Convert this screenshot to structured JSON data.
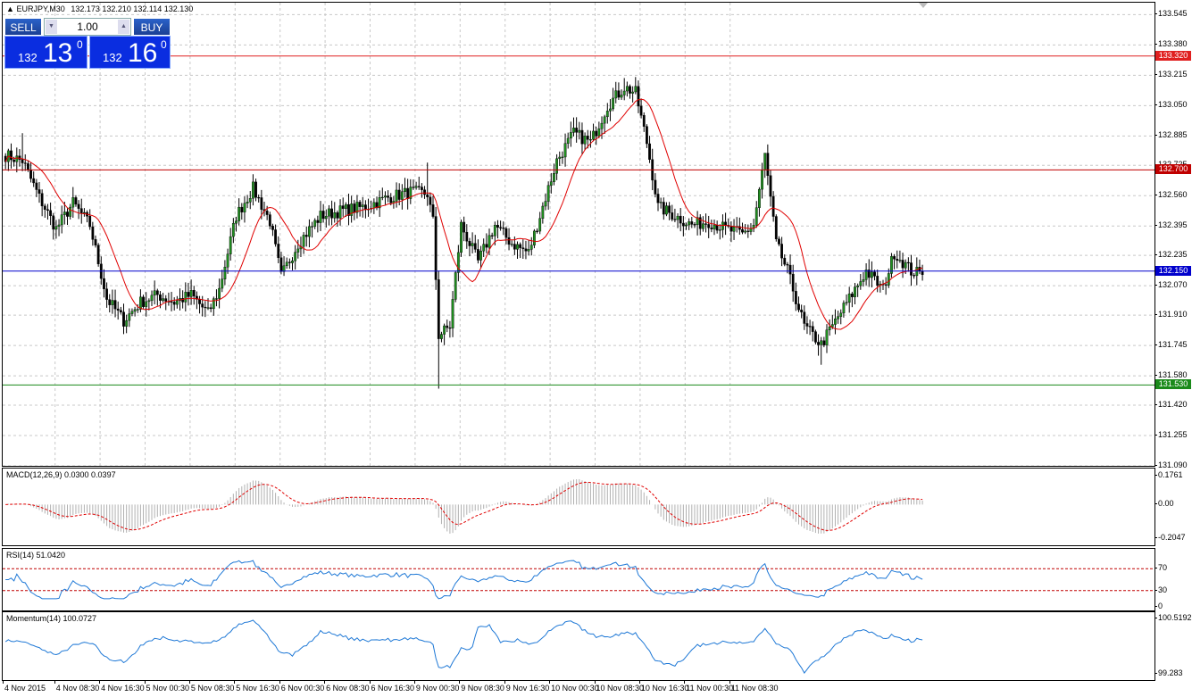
{
  "main": {
    "title": "EURJPY,M30",
    "ohlc": "132.173 132.210 132.114 132.130",
    "y_ticks": [
      "133.545",
      "133.380",
      "133.215",
      "133.050",
      "132.885",
      "132.725",
      "132.560",
      "132.395",
      "132.235",
      "132.070",
      "131.910",
      "131.745",
      "131.580",
      "131.420",
      "131.255",
      "131.090"
    ],
    "hlines": [
      {
        "value": 133.32,
        "label": "133.320",
        "color": "#e02020"
      },
      {
        "value": 132.7,
        "label": "132.700",
        "color": "#c00000"
      },
      {
        "value": 132.15,
        "label": "132.150",
        "color": "#0000cc"
      },
      {
        "value": 131.53,
        "label": "131.530",
        "color": "#1a8a1a"
      }
    ]
  },
  "trade_panel": {
    "sell_label": "SELL",
    "buy_label": "BUY",
    "lot": "1.00",
    "sell_prefix": "132",
    "sell_big": "13",
    "sell_sup": "0",
    "buy_prefix": "132",
    "buy_big": "16",
    "buy_sup": "0",
    "arrow_down": "▼",
    "arrow_up": "▲"
  },
  "macd": {
    "title": "MACD(12,26,9) 0.0300 0.0397",
    "ticks": [
      "0.1761",
      "0.00",
      "-0.2047"
    ]
  },
  "rsi": {
    "title": "RSI(14) 51.0420",
    "ticks": [
      "70",
      "30",
      "0"
    ],
    "levels": [
      70,
      30
    ]
  },
  "momentum": {
    "title": "Momentum(14) 100.0727",
    "ticks": [
      "100.5192",
      "99.283"
    ]
  },
  "x_labels": [
    "4 Nov 2015",
    "4 Nov 08:30",
    "4 Nov 16:30",
    "5 Nov 00:30",
    "5 Nov 08:30",
    "5 Nov 16:30",
    "6 Nov 00:30",
    "6 Nov 08:30",
    "6 Nov 16:30",
    "9 Nov 00:30",
    "9 Nov 08:30",
    "9 Nov 16:30",
    "10 Nov 00:30",
    "10 Nov 08:30",
    "10 Nov 16:30",
    "11 Nov 00:30",
    "11 Nov 08:30"
  ],
  "colors": {
    "bull": "#1f8f1f",
    "bear": "#000000",
    "ma": "#e00000",
    "signal": "#e00000",
    "hist": "#b0b0b0",
    "rsi": "#1e78d6",
    "mom": "#1e78d6",
    "grid": "#c8c8c8"
  },
  "chart_data": {
    "type": "candlestick",
    "symbol": "EURJPY",
    "timeframe": "M30",
    "ylim": [
      131.09,
      133.61
    ],
    "anchors_close": [
      [
        0,
        132.78
      ],
      [
        6,
        132.75
      ],
      [
        12,
        132.55
      ],
      [
        18,
        132.38
      ],
      [
        24,
        132.52
      ],
      [
        30,
        132.4
      ],
      [
        36,
        132.0
      ],
      [
        42,
        131.88
      ],
      [
        48,
        131.98
      ],
      [
        54,
        132.02
      ],
      [
        60,
        131.98
      ],
      [
        66,
        132.02
      ],
      [
        72,
        131.92
      ],
      [
        76,
        132.05
      ],
      [
        82,
        132.45
      ],
      [
        88,
        132.6
      ],
      [
        94,
        132.42
      ],
      [
        98,
        132.12
      ],
      [
        104,
        132.3
      ],
      [
        112,
        132.45
      ],
      [
        120,
        132.48
      ],
      [
        128,
        132.5
      ],
      [
        136,
        132.55
      ],
      [
        144,
        132.58
      ],
      [
        150,
        132.57
      ],
      [
        152,
        132.42
      ],
      [
        154,
        131.8
      ],
      [
        158,
        131.85
      ],
      [
        162,
        132.4
      ],
      [
        168,
        132.2
      ],
      [
        174,
        132.4
      ],
      [
        180,
        132.3
      ],
      [
        186,
        132.25
      ],
      [
        190,
        132.45
      ],
      [
        196,
        132.75
      ],
      [
        202,
        132.9
      ],
      [
        208,
        132.85
      ],
      [
        214,
        133.05
      ],
      [
        220,
        133.15
      ],
      [
        224,
        133.12
      ],
      [
        228,
        132.85
      ],
      [
        232,
        132.5
      ],
      [
        238,
        132.45
      ],
      [
        244,
        132.4
      ],
      [
        250,
        132.42
      ],
      [
        256,
        132.38
      ],
      [
        262,
        132.35
      ],
      [
        266,
        132.4
      ],
      [
        270,
        132.78
      ],
      [
        274,
        132.3
      ],
      [
        278,
        132.15
      ],
      [
        284,
        131.85
      ],
      [
        290,
        131.75
      ],
      [
        296,
        131.9
      ],
      [
        300,
        132.0
      ],
      [
        306,
        132.15
      ],
      [
        312,
        132.05
      ],
      [
        316,
        132.25
      ],
      [
        322,
        132.15
      ],
      [
        326,
        132.13
      ]
    ],
    "bar_count": 327,
    "indicators": [
      "MA",
      "MACD(12,26,9)",
      "RSI(14)",
      "Momentum(14)"
    ]
  }
}
